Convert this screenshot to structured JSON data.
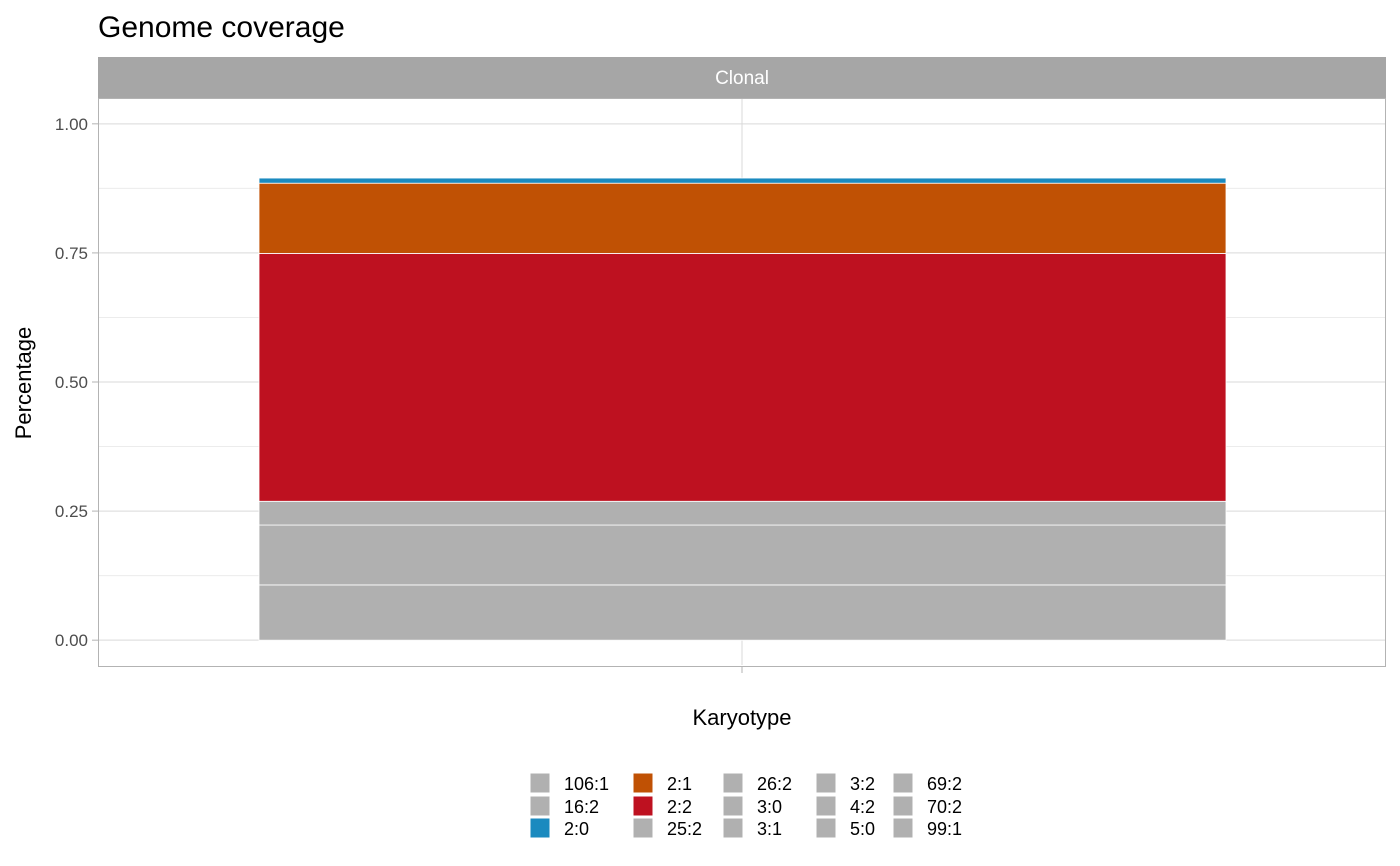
{
  "chart_data": {
    "type": "bar",
    "title": "Genome coverage",
    "facet": "Clonal",
    "xlabel": "Karyotype",
    "ylabel": "Percentage",
    "ylim": [
      -0.05,
      1.05
    ],
    "y_ticks": [
      "0.00",
      "0.25",
      "0.50",
      "0.75",
      "1.00"
    ],
    "y_tick_values": [
      0,
      0.25,
      0.5,
      0.75,
      1.0
    ],
    "grid": true,
    "legend_position": "bottom",
    "stacked": true,
    "segments": [
      {
        "label": "106:1",
        "value": 0.107,
        "color": "#b0b0b0"
      },
      {
        "label": "16:2",
        "value": 0.116,
        "color": "#b0b0b0"
      },
      {
        "label": "25:2",
        "value": 0.046,
        "color": "#b0b0b0"
      },
      {
        "label": "2:2",
        "value": 0.48,
        "color": "#be1120"
      },
      {
        "label": "2:1",
        "value": 0.136,
        "color": "#c05104"
      },
      {
        "label": "2:0",
        "value": 0.01,
        "color": "#1b8abf"
      }
    ],
    "legend": [
      {
        "label": "106:1",
        "color": "#b0b0b0"
      },
      {
        "label": "16:2",
        "color": "#b0b0b0"
      },
      {
        "label": "2:0",
        "color": "#1b8abf"
      },
      {
        "label": "2:1",
        "color": "#c05104"
      },
      {
        "label": "2:2",
        "color": "#be1120"
      },
      {
        "label": "25:2",
        "color": "#b0b0b0"
      },
      {
        "label": "26:2",
        "color": "#b0b0b0"
      },
      {
        "label": "3:0",
        "color": "#b0b0b0"
      },
      {
        "label": "3:1",
        "color": "#b0b0b0"
      },
      {
        "label": "3:2",
        "color": "#b0b0b0"
      },
      {
        "label": "4:2",
        "color": "#b0b0b0"
      },
      {
        "label": "5:0",
        "color": "#b0b0b0"
      },
      {
        "label": "69:2",
        "color": "#b0b0b0"
      },
      {
        "label": "70:2",
        "color": "#b0b0b0"
      },
      {
        "label": "99:1",
        "color": "#b0b0b0"
      }
    ]
  }
}
